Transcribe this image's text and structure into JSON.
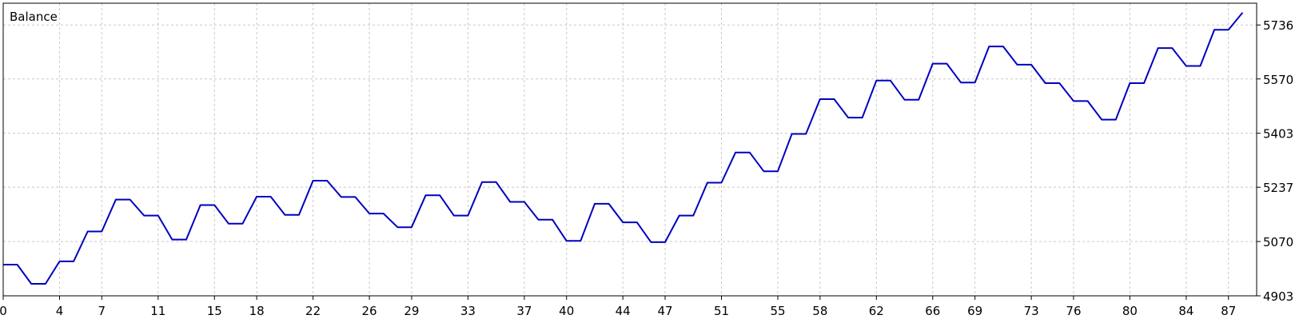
{
  "chart_data": {
    "type": "line",
    "title": "Balance",
    "xlabel": "",
    "ylabel": "",
    "x_ticks": [
      "0",
      "4",
      "7",
      "11",
      "15",
      "18",
      "22",
      "26",
      "29",
      "33",
      "37",
      "40",
      "44",
      "47",
      "51",
      "55",
      "58",
      "62",
      "66",
      "69",
      "73",
      "76",
      "80",
      "84",
      "87"
    ],
    "y_ticks": [
      "4903",
      "5070",
      "5237",
      "5403",
      "5570",
      "5736"
    ],
    "xlim": [
      0,
      89
    ],
    "ylim": [
      4903,
      5803
    ],
    "grid": true,
    "colors": {
      "line": "#0000c0",
      "grid": "#c8c8c8",
      "frame": "#000000",
      "background": "#ffffff"
    },
    "series": [
      {
        "values": [
          [
            0,
            4999
          ],
          [
            1,
            4999
          ],
          [
            2,
            4940
          ],
          [
            3,
            4940
          ],
          [
            4,
            5009
          ],
          [
            5,
            5009
          ],
          [
            6,
            5101
          ],
          [
            7,
            5101
          ],
          [
            8,
            5199
          ],
          [
            9,
            5199
          ],
          [
            10,
            5150
          ],
          [
            11,
            5150
          ],
          [
            12,
            5076
          ],
          [
            13,
            5076
          ],
          [
            14,
            5182
          ],
          [
            15,
            5182
          ],
          [
            16,
            5125
          ],
          [
            17,
            5125
          ],
          [
            18,
            5208
          ],
          [
            19,
            5208
          ],
          [
            20,
            5152
          ],
          [
            21,
            5152
          ],
          [
            22,
            5257
          ],
          [
            23,
            5257
          ],
          [
            24,
            5207
          ],
          [
            25,
            5207
          ],
          [
            26,
            5156
          ],
          [
            27,
            5156
          ],
          [
            28,
            5114
          ],
          [
            29,
            5114
          ],
          [
            30,
            5212
          ],
          [
            31,
            5212
          ],
          [
            32,
            5150
          ],
          [
            33,
            5150
          ],
          [
            34,
            5253
          ],
          [
            35,
            5253
          ],
          [
            36,
            5192
          ],
          [
            37,
            5192
          ],
          [
            38,
            5137
          ],
          [
            39,
            5137
          ],
          [
            40,
            5072
          ],
          [
            41,
            5072
          ],
          [
            42,
            5186
          ],
          [
            43,
            5186
          ],
          [
            44,
            5129
          ],
          [
            45,
            5129
          ],
          [
            46,
            5068
          ],
          [
            47,
            5068
          ],
          [
            48,
            5150
          ],
          [
            49,
            5150
          ],
          [
            50,
            5251
          ],
          [
            51,
            5251
          ],
          [
            52,
            5344
          ],
          [
            53,
            5344
          ],
          [
            54,
            5286
          ],
          [
            55,
            5286
          ],
          [
            56,
            5401
          ],
          [
            57,
            5401
          ],
          [
            58,
            5508
          ],
          [
            59,
            5508
          ],
          [
            60,
            5451
          ],
          [
            61,
            5451
          ],
          [
            62,
            5565
          ],
          [
            63,
            5565
          ],
          [
            64,
            5506
          ],
          [
            65,
            5506
          ],
          [
            66,
            5617
          ],
          [
            67,
            5617
          ],
          [
            68,
            5559
          ],
          [
            69,
            5559
          ],
          [
            70,
            5670
          ],
          [
            71,
            5670
          ],
          [
            72,
            5614
          ],
          [
            73,
            5614
          ],
          [
            74,
            5557
          ],
          [
            75,
            5557
          ],
          [
            76,
            5502
          ],
          [
            77,
            5502
          ],
          [
            78,
            5445
          ],
          [
            79,
            5445
          ],
          [
            80,
            5557
          ],
          [
            81,
            5557
          ],
          [
            82,
            5665
          ],
          [
            83,
            5665
          ],
          [
            84,
            5610
          ],
          [
            85,
            5610
          ],
          [
            86,
            5721
          ],
          [
            87,
            5721
          ],
          [
            88,
            5774
          ]
        ]
      }
    ]
  }
}
